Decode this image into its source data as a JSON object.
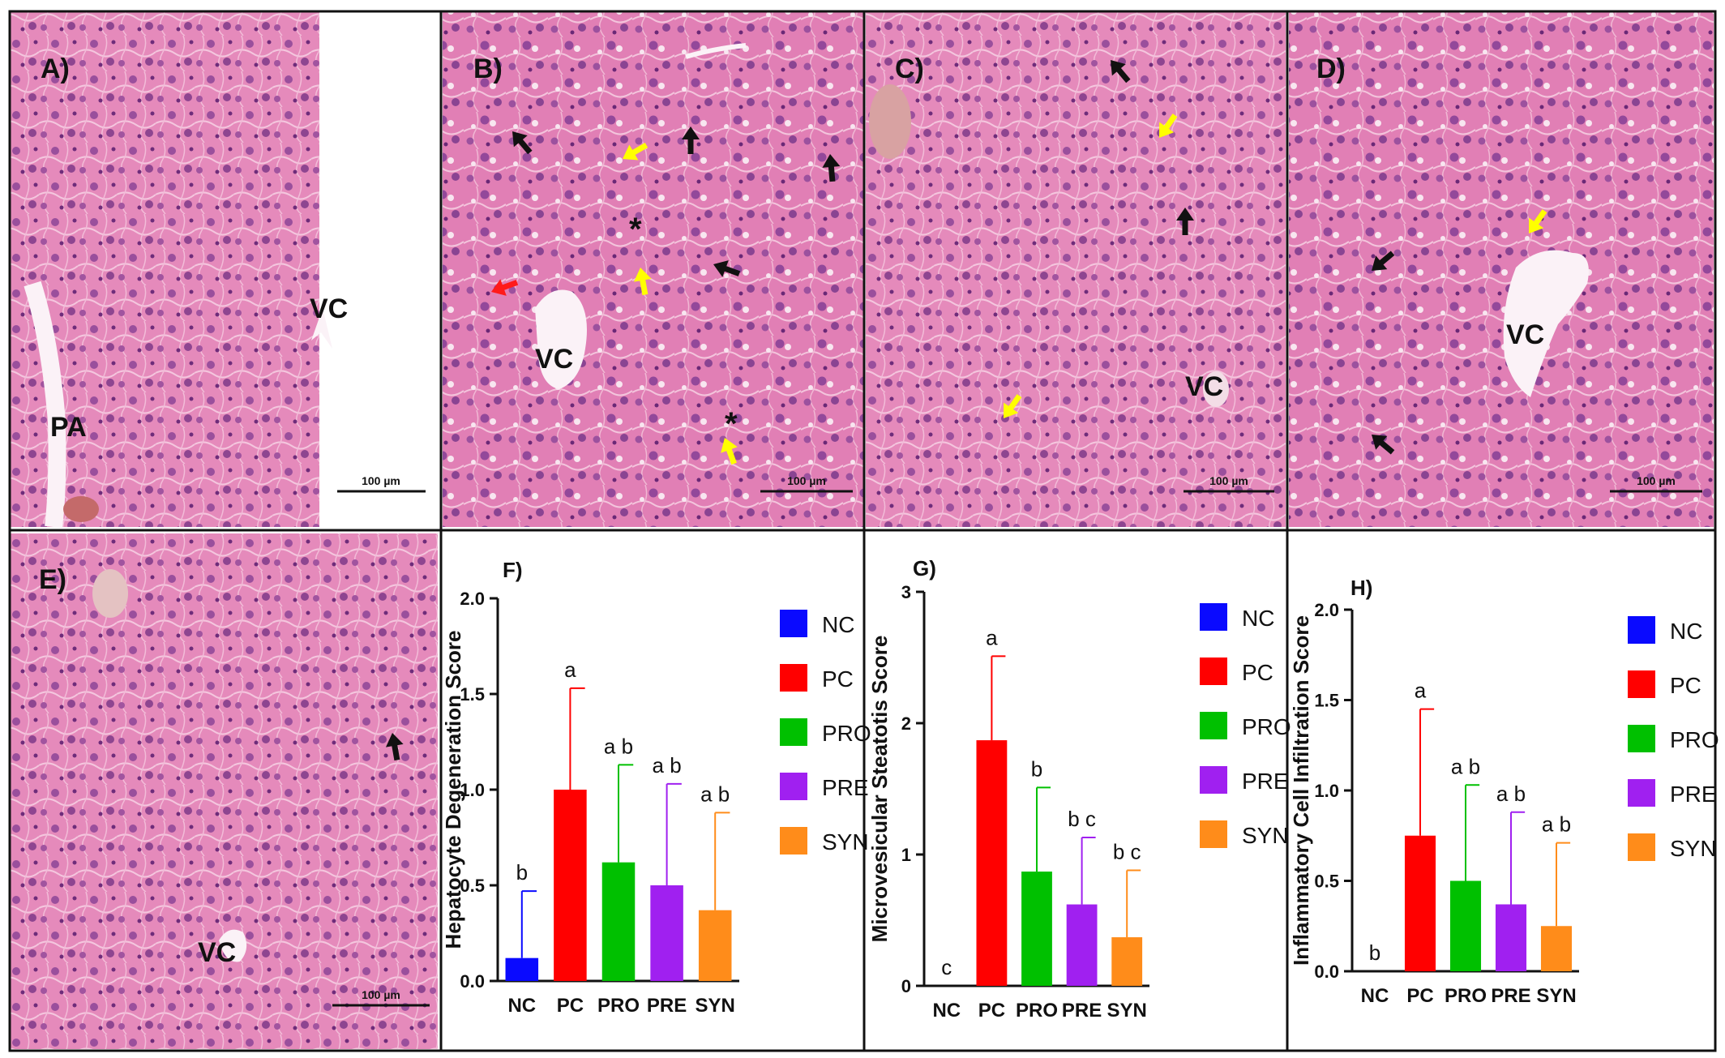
{
  "panels": {
    "A": {
      "label": "A)",
      "annotations": [
        {
          "text": "VC"
        },
        {
          "text": "PA"
        }
      ],
      "scale_bar": "100 µm"
    },
    "B": {
      "label": "B)",
      "annotations": [
        {
          "text": "VC"
        },
        {
          "text": "*"
        },
        {
          "text": "*"
        }
      ],
      "scale_bar": "100 µm"
    },
    "C": {
      "label": "C)",
      "annotations": [
        {
          "text": "VC"
        }
      ],
      "scale_bar": "100 µm"
    },
    "D": {
      "label": "D)",
      "annotations": [
        {
          "text": "VC"
        }
      ],
      "scale_bar": "100 µm"
    },
    "E": {
      "label": "E)",
      "annotations": [
        {
          "text": "VC"
        }
      ],
      "scale_bar": "100 µm"
    }
  },
  "arrows": {
    "black": "#111111",
    "yellow": "#ffff00",
    "red": "#ff1a1a"
  },
  "tissue_colors": {
    "background": "#e47db6",
    "nucleus": "#8a3d86",
    "vessel": "#fbf4f8"
  },
  "chart_data": [
    {
      "panel": "F)",
      "type": "bar",
      "ylabel": "Hepatocyte Degeneration Score",
      "categories": [
        "NC",
        "PC",
        "PRO",
        "PRE",
        "SYN"
      ],
      "values": [
        0.12,
        1.0,
        0.62,
        0.5,
        0.37
      ],
      "errors": [
        0.35,
        0.53,
        0.51,
        0.53,
        0.51
      ],
      "sig_labels": [
        "b",
        "a",
        "a b",
        "a b",
        "a b"
      ],
      "ylim": [
        0,
        2.0
      ],
      "yticks": [
        "0.0",
        "0.5",
        "1.0",
        "1.5",
        "2.0"
      ],
      "colors": [
        "#0a0aff",
        "#ff0000",
        "#00c000",
        "#a020f0",
        "#ff8c1a"
      ],
      "legend": [
        "NC",
        "PC",
        "PRO",
        "PRE",
        "SYN"
      ],
      "legend_position": "right"
    },
    {
      "panel": "G)",
      "type": "bar",
      "ylabel": "Microvesicular Steatotis Score",
      "categories": [
        "NC",
        "PC",
        "PRO",
        "PRE",
        "SYN"
      ],
      "values": [
        0,
        1.87,
        0.87,
        0.62,
        0.37
      ],
      "errors": [
        0,
        0.64,
        0.64,
        0.51,
        0.51
      ],
      "sig_labels": [
        "c",
        "a",
        "b",
        "b c",
        "b c"
      ],
      "ylim": [
        0,
        3
      ],
      "yticks": [
        "0",
        "1",
        "2",
        "3"
      ],
      "colors": [
        "#0a0aff",
        "#ff0000",
        "#00c000",
        "#a020f0",
        "#ff8c1a"
      ],
      "legend": [
        "NC",
        "PC",
        "PRO",
        "PRE",
        "SYN"
      ],
      "legend_position": "right"
    },
    {
      "panel": "H)",
      "type": "bar",
      "ylabel": "Inflammatory Cell Infiltration Score",
      "categories": [
        "NC",
        "PC",
        "PRO",
        "PRE",
        "SYN"
      ],
      "values": [
        0,
        0.75,
        0.5,
        0.37,
        0.25
      ],
      "errors": [
        0,
        0.7,
        0.53,
        0.51,
        0.46
      ],
      "sig_labels": [
        "b",
        "a",
        "a b",
        "a b",
        "a b"
      ],
      "ylim": [
        0,
        2.0
      ],
      "yticks": [
        "0.0",
        "0.5",
        "1.0",
        "1.5",
        "2.0"
      ],
      "colors": [
        "#0a0aff",
        "#ff0000",
        "#00c000",
        "#a020f0",
        "#ff8c1a"
      ],
      "legend": [
        "NC",
        "PC",
        "PRO",
        "PRE",
        "SYN"
      ],
      "legend_position": "right"
    }
  ]
}
